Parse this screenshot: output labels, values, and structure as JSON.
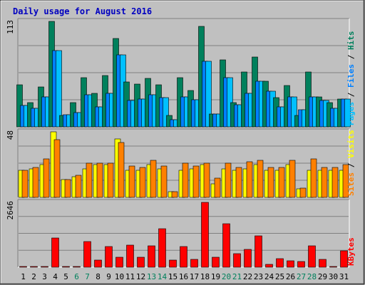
{
  "chart_data": [
    {
      "type": "bar",
      "title": "Daily usage for August 2016",
      "ylabel_parts": [
        "Pages",
        "Files",
        "Hits"
      ],
      "ylabel_separator": " / ",
      "ymax_label": "113",
      "ylim": [
        0,
        113
      ],
      "categories": [
        "1",
        "2",
        "3",
        "4",
        "5",
        "6",
        "7",
        "8",
        "9",
        "10",
        "11",
        "12",
        "13",
        "14",
        "15",
        "16",
        "17",
        "18",
        "19",
        "20",
        "21",
        "22",
        "23",
        "24",
        "25",
        "26",
        "27",
        "28",
        "29",
        "30",
        "31"
      ],
      "series": [
        {
          "name": "Hits",
          "color": "#00805c",
          "values": [
            45,
            26,
            43,
            113,
            12,
            26,
            53,
            36,
            55,
            95,
            48,
            46,
            52,
            45,
            12,
            53,
            39,
            108,
            14,
            72,
            26,
            59,
            75,
            49,
            31,
            44,
            12,
            59,
            32,
            26,
            30
          ]
        },
        {
          "name": "Files",
          "color": "#0080ff",
          "values": [
            23,
            20,
            32,
            82,
            13,
            15,
            34,
            21,
            36,
            77,
            28,
            30,
            34,
            31,
            8,
            32,
            29,
            70,
            14,
            53,
            24,
            36,
            49,
            38,
            21,
            32,
            18,
            32,
            28,
            20,
            30
          ]
        },
        {
          "name": "Pages",
          "color": "#00c0ff",
          "values": [
            23,
            20,
            32,
            82,
            13,
            15,
            34,
            21,
            36,
            77,
            28,
            30,
            34,
            31,
            8,
            32,
            29,
            70,
            14,
            53,
            24,
            36,
            49,
            38,
            21,
            32,
            18,
            32,
            28,
            20,
            30
          ]
        }
      ]
    },
    {
      "type": "bar",
      "ylabel_parts": [
        "Sites",
        "Visits"
      ],
      "ylabel_separator": " / ",
      "ymax_label": "48",
      "ylim": [
        0,
        48
      ],
      "categories": [
        "1",
        "2",
        "3",
        "4",
        "5",
        "6",
        "7",
        "8",
        "9",
        "10",
        "11",
        "12",
        "13",
        "14",
        "15",
        "16",
        "17",
        "18",
        "19",
        "20",
        "21",
        "22",
        "23",
        "24",
        "25",
        "26",
        "27",
        "28",
        "29",
        "30",
        "31"
      ],
      "series": [
        {
          "name": "Visits",
          "color": "#ffff00",
          "values": [
            20,
            21,
            24,
            48,
            13,
            15,
            21,
            24,
            24,
            43,
            20,
            20,
            24,
            21,
            4,
            20,
            21,
            24,
            10,
            21,
            20,
            21,
            24,
            20,
            20,
            24,
            6,
            20,
            20,
            20,
            20
          ]
        },
        {
          "name": "Sites",
          "color": "#ff8000",
          "values": [
            20,
            22,
            28,
            42,
            13,
            16,
            25,
            25,
            25,
            40,
            23,
            22,
            27,
            23,
            4,
            25,
            23,
            25,
            14,
            25,
            22,
            26,
            27,
            22,
            22,
            27,
            7,
            28,
            22,
            22,
            24
          ]
        }
      ]
    },
    {
      "type": "bar",
      "ylabel_parts": [
        "KBytes"
      ],
      "ylabel_separator": "",
      "ymax_label": "2646",
      "ylim": [
        0,
        2646
      ],
      "categories": [
        "1",
        "2",
        "3",
        "4",
        "5",
        "6",
        "7",
        "8",
        "9",
        "10",
        "11",
        "12",
        "13",
        "14",
        "15",
        "16",
        "17",
        "18",
        "19",
        "20",
        "21",
        "22",
        "23",
        "24",
        "25",
        "26",
        "27",
        "28",
        "29",
        "30",
        "31"
      ],
      "series": [
        {
          "name": "KBytes",
          "color": "#ff0000",
          "values": [
            20,
            25,
            25,
            1200,
            20,
            20,
            1050,
            300,
            850,
            400,
            900,
            400,
            870,
            1580,
            300,
            850,
            330,
            2646,
            400,
            1780,
            550,
            720,
            1280,
            130,
            350,
            250,
            230,
            860,
            330,
            30,
            680
          ]
        }
      ]
    }
  ],
  "x_axis": {
    "labels": [
      "1",
      "2",
      "3",
      "4",
      "5",
      "6",
      "7",
      "8",
      "9",
      "10",
      "11",
      "12",
      "13",
      "14",
      "15",
      "16",
      "17",
      "18",
      "19",
      "20",
      "21",
      "22",
      "23",
      "24",
      "25",
      "26",
      "27",
      "28",
      "29",
      "30",
      "31"
    ],
    "weekend_days": [
      "6",
      "7",
      "13",
      "14",
      "20",
      "21",
      "27",
      "28"
    ],
    "weekday_color": "#000000",
    "weekend_color": "#00805c"
  },
  "colors": {
    "background": "#c0c0c0",
    "panel_bg": "#c0c0c0",
    "gridline": "#808080",
    "title": "#0000c0"
  }
}
